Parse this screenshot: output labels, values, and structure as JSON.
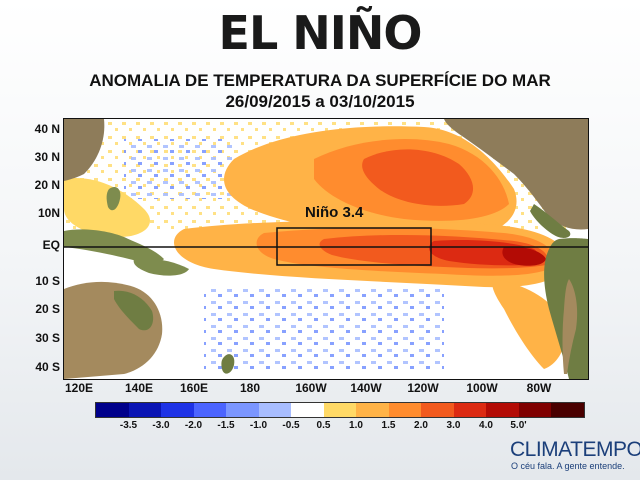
{
  "title": "EL NIÑO",
  "subtitle_line1": "ANOMALIA DE TEMPERATURA DA SUPERFÍCIE DO MAR",
  "subtitle_line2": "26/09/2015 a 03/10/2015",
  "region_label": "Niño 3.4",
  "latitude_labels": [
    "40 N",
    "30 N",
    "20 N",
    "10N",
    "EQ",
    "10 S",
    "20 S",
    "30 S",
    "40 S"
  ],
  "longitude_labels": [
    "120E",
    "140E",
    "160E",
    "180",
    "160W",
    "140W",
    "120W",
    "100W",
    "80W"
  ],
  "scale": {
    "colors": [
      "#00008b",
      "#0a14b4",
      "#1e32e6",
      "#4b64ff",
      "#7b96ff",
      "#a8bdff",
      "#ffffff",
      "#ffd966",
      "#ffb347",
      "#ff8c2e",
      "#f25a1e",
      "#dc2a12",
      "#b30b05",
      "#800000",
      "#4a0000"
    ],
    "labels": [
      "-3.5",
      "-3.0",
      "-2.0",
      "-1.5",
      "-1.0",
      "-0.5",
      "0.5",
      "1.0",
      "1.5",
      "2.0",
      "3.0",
      "4.0",
      "5.0'"
    ]
  },
  "brand": "CLIMATEMPO",
  "slogan": "O céu fala. A gente entende."
}
